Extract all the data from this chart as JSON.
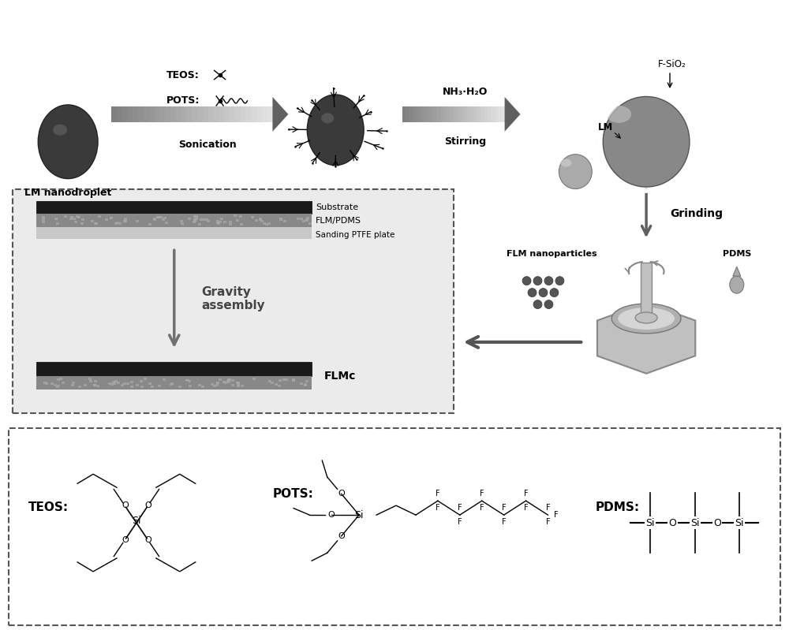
{
  "background_color": "#ffffff",
  "title": "",
  "figsize": [
    10.0,
    7.99
  ],
  "dpi": 100,
  "top_section": {
    "lm_label": "LM nanodroplet",
    "sonication_label": "Sonication",
    "nh3_label": "NH₃·H₂O",
    "stirring_label": "Stirring",
    "grinding_label": "Grinding",
    "teos_label": "TEOS:",
    "pots_label": "POTS:",
    "f_sio2_label": "F-SiO₂",
    "lm_label2": "LM"
  },
  "middle_section": {
    "box_title": "",
    "substrate_label": "Substrate",
    "flm_pdms_label": "FLM/PDMS",
    "sanding_label": "Sanding PTFE plate",
    "gravity_label": "Gravity\nassembly",
    "flmc_label": "FLMc",
    "flm_nano_label": "FLM nanoparticles",
    "pdms_label": "PDMS"
  },
  "bottom_section": {
    "teos_label": "TEOS:",
    "pots_label": "POTS:",
    "pdms_label": "PDMS:"
  },
  "colors": {
    "dark_sphere": "#404040",
    "medium_gray": "#808080",
    "light_gray": "#c0c0c0",
    "arrow_gray": "#909090",
    "black": "#000000",
    "white": "#ffffff",
    "box_bg": "#e8e8e8",
    "dashed_border": "#666666"
  }
}
